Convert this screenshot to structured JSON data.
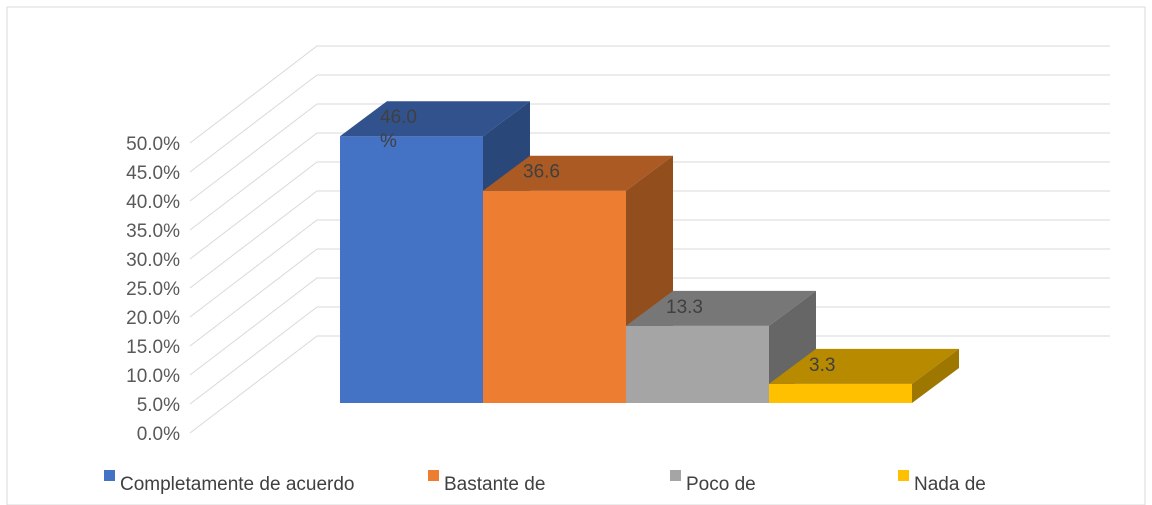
{
  "chart_data": {
    "type": "bar",
    "three_d": true,
    "title": "",
    "xlabel": "",
    "ylabel": "",
    "categories": [
      "Completamente de acuerdo",
      "Bastante de",
      "Poco de",
      "Nada de"
    ],
    "values": [
      46.0,
      36.6,
      13.3,
      3.3
    ],
    "value_labels": [
      "46.0 %",
      "36.6",
      "13.3",
      "3.3"
    ],
    "colors": [
      "#4472C4",
      "#ED7D31",
      "#A5A5A5",
      "#FFC000"
    ],
    "ylim": [
      0,
      50
    ],
    "yticks": [
      "0.0%",
      "5.0%",
      "10.0%",
      "15.0%",
      "20.0%",
      "25.0%",
      "30.0%",
      "35.0%",
      "40.0%",
      "45.0%",
      "50.0%"
    ],
    "grid": true,
    "legend_position": "bottom"
  }
}
